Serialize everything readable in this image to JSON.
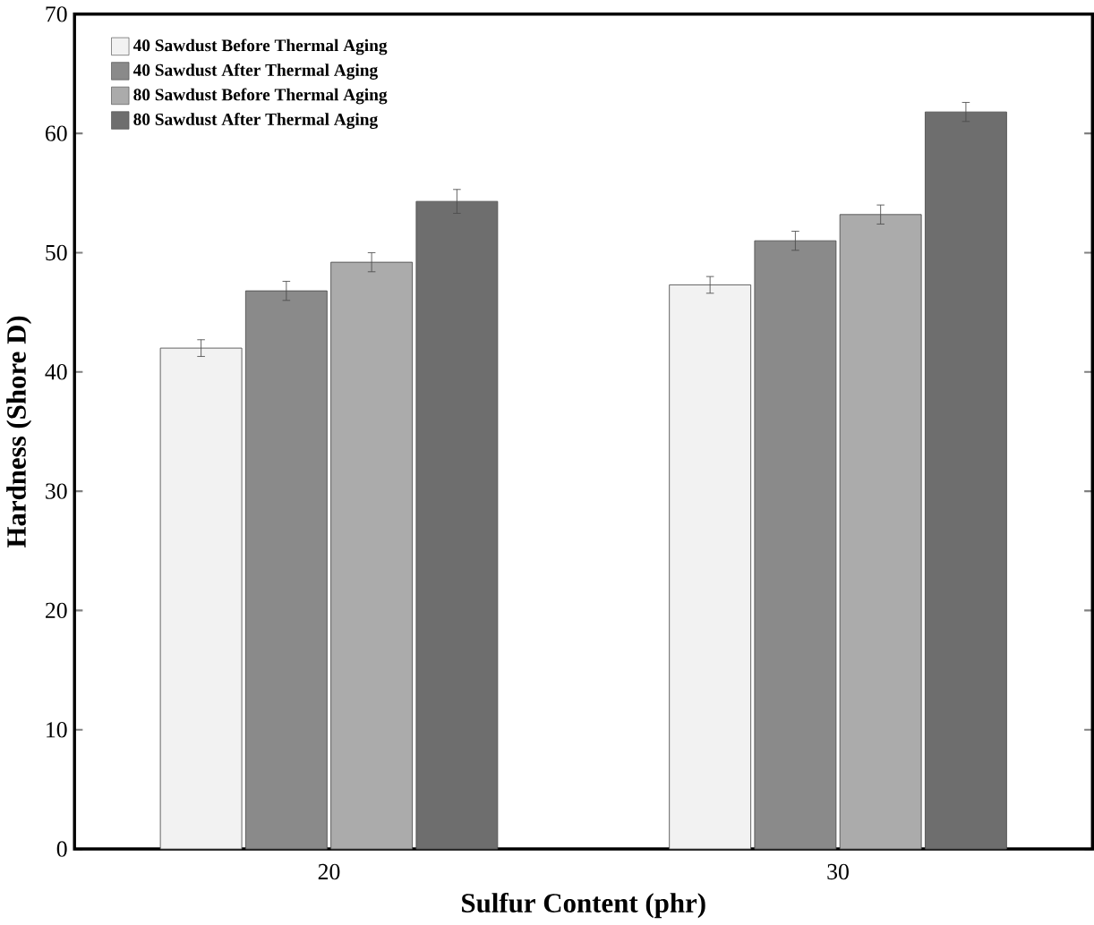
{
  "chart_data": {
    "type": "bar",
    "xlabel": "Sulfur Content (phr)",
    "ylabel": "Hardness (Shore D)",
    "categories": [
      "20",
      "30"
    ],
    "series": [
      {
        "name": "40 Sawdust Before Thermal Aging",
        "color": "#f2f2f2",
        "values": [
          42.0,
          47.3
        ],
        "errors": [
          0.7,
          0.7
        ]
      },
      {
        "name": "40 Sawdust After Thermal Aging",
        "color": "#8a8a8a",
        "values": [
          46.8,
          51.0
        ],
        "errors": [
          0.8,
          0.8
        ]
      },
      {
        "name": "80 Sawdust Before Thermal Aging",
        "color": "#ababab",
        "values": [
          49.2,
          53.2
        ],
        "errors": [
          0.8,
          0.8
        ]
      },
      {
        "name": "80 Sawdust After Thermal Aging",
        "color": "#6e6e6e",
        "values": [
          54.3,
          61.8
        ],
        "errors": [
          1.0,
          0.8
        ]
      }
    ],
    "ylim": [
      0,
      70
    ],
    "yticks": [
      0,
      10,
      20,
      30,
      40,
      50,
      60,
      70
    ],
    "legend": "top left",
    "grid": false
  }
}
